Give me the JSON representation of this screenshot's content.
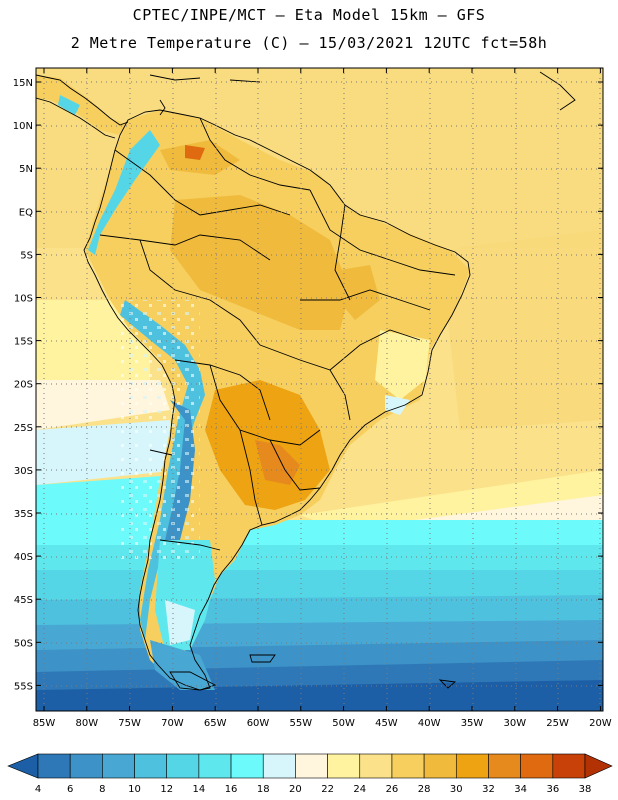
{
  "title": {
    "line1": "CPTEC/INPE/MCT –  Eta Model 15km – GFS",
    "line2": "2 Metre Temperature (C) – 15/03/2021 12UTC fct=58h"
  },
  "map": {
    "region": "South America",
    "variable": "2 Metre Temperature",
    "units": "C",
    "lat_labels": [
      "15N",
      "10N",
      "5N",
      "EQ",
      "5S",
      "10S",
      "15S",
      "20S",
      "25S",
      "30S",
      "35S",
      "40S",
      "45S",
      "50S",
      "55S"
    ],
    "lon_labels": [
      "85W",
      "80W",
      "75W",
      "70W",
      "65W",
      "60W",
      "55W",
      "50W",
      "45W",
      "40W",
      "35W",
      "30W",
      "25W",
      "20W"
    ]
  },
  "colorbar": {
    "ticks": [
      "4",
      "6",
      "8",
      "10",
      "12",
      "14",
      "16",
      "18",
      "20",
      "22",
      "24",
      "26",
      "28",
      "30",
      "32",
      "34",
      "36",
      "38"
    ],
    "colors": [
      "#1d5fa6",
      "#2e78b8",
      "#3d92c7",
      "#48a8d3",
      "#4ec1de",
      "#55d6e6",
      "#5ee8ee",
      "#6cfafa",
      "#d6f6fb",
      "#fff6dd",
      "#fff3a0",
      "#fbe28a",
      "#f6cf5f",
      "#f0bb3c",
      "#eda312",
      "#e78a1d",
      "#df6a10",
      "#c84108",
      "#b33204"
    ]
  }
}
